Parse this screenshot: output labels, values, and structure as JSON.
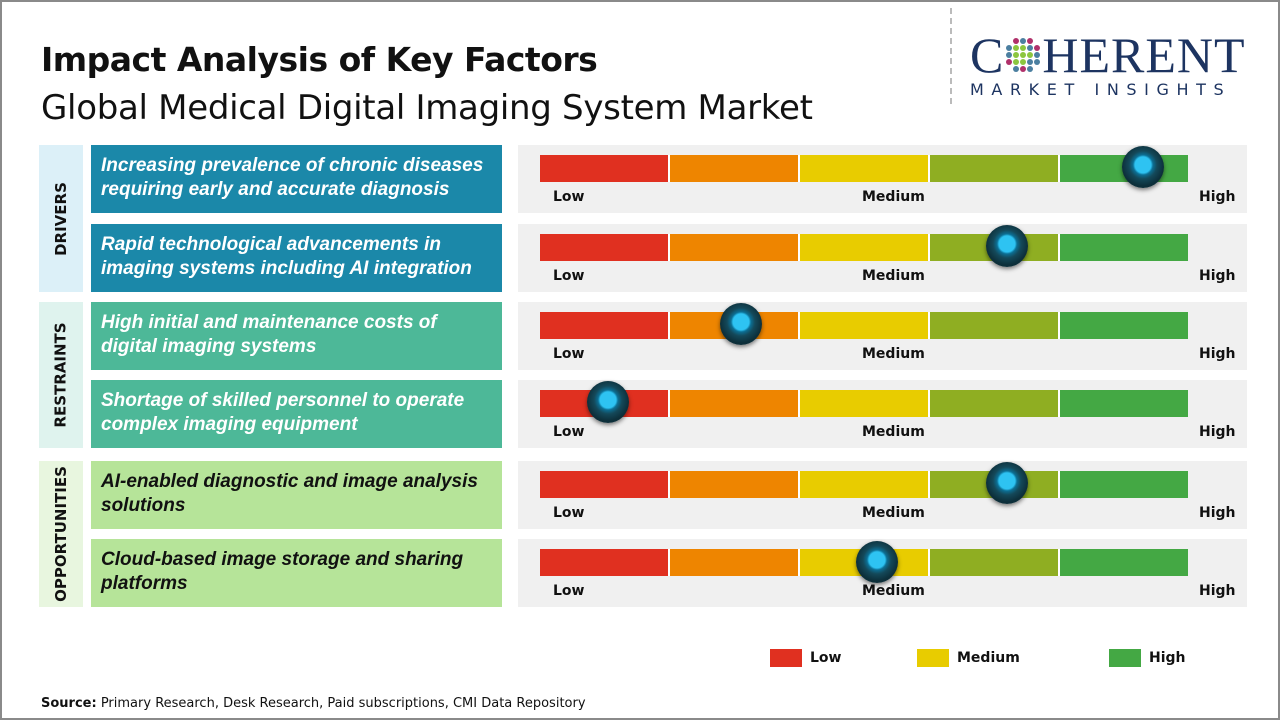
{
  "title": "Impact Analysis of Key Factors",
  "subtitle": "Global Medical Digital Imaging System Market",
  "logo": {
    "main": "COHERENT",
    "tagline": "MARKET INSIGHTS"
  },
  "scale_labels": {
    "low": "Low",
    "medium": "Medium",
    "high": "High"
  },
  "scale_colors": [
    "#e03020",
    "#ee8500",
    "#e8cc00",
    "#8fae22",
    "#44a844"
  ],
  "categories": [
    {
      "label": "DRIVERS",
      "bg": "#dcf0f8",
      "item_bg": "#1b88a9",
      "item_text": "#ffffff"
    },
    {
      "label": "RESTRAINTS",
      "bg": "#dff3ee",
      "item_bg": "#4db898",
      "item_text": "#ffffff"
    },
    {
      "label": "OPPORTUNITIES",
      "bg": "#e8f6df",
      "item_bg": "#b6e499",
      "item_text": "#111111"
    }
  ],
  "factors": [
    {
      "category": 0,
      "text": "Increasing prevalence of chronic diseases requiring early and accurate diagnosis",
      "impact": 0.93
    },
    {
      "category": 0,
      "text": "Rapid technological advancements in imaging systems including AI integration",
      "impact": 0.72
    },
    {
      "category": 1,
      "text": "High initial and maintenance costs of digital imaging systems",
      "impact": 0.31
    },
    {
      "category": 1,
      "text": "Shortage of skilled personnel to operate complex imaging equipment",
      "impact": 0.105
    },
    {
      "category": 2,
      "text": "AI-enabled diagnostic and image analysis solutions",
      "impact": 0.72
    },
    {
      "category": 2,
      "text": "Cloud-based image storage and sharing platforms",
      "impact": 0.52
    }
  ],
  "legend": [
    {
      "label": "Low",
      "color": "#e03020"
    },
    {
      "label": "Medium",
      "color": "#e8cc00"
    },
    {
      "label": "High",
      "color": "#44a844"
    }
  ],
  "source": {
    "label": "Source:",
    "text": " Primary Research, Desk Research, Paid subscriptions, CMI Data Repository"
  }
}
